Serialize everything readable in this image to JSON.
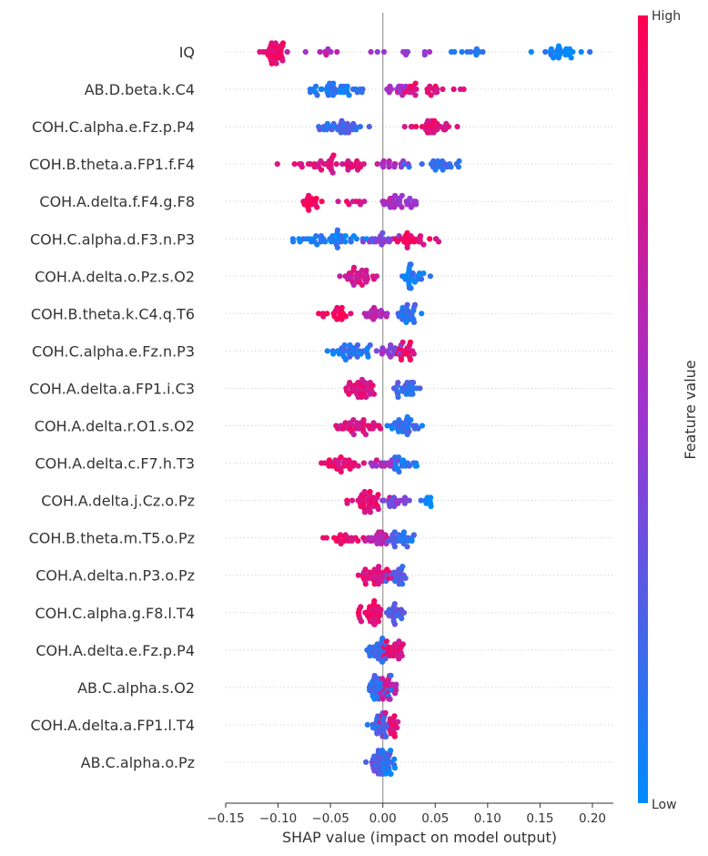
{
  "chart_data": {
    "type": "scatter",
    "subtype": "shap-beeswarm",
    "xlabel": "SHAP value (impact on model output)",
    "xlim": [
      -0.15,
      0.22
    ],
    "x_ticks": [
      -0.15,
      -0.1,
      -0.05,
      0.0,
      0.05,
      0.1,
      0.15,
      0.2
    ],
    "x_tick_labels": [
      "−0.15",
      "−0.10",
      "−0.05",
      "0.00",
      "0.05",
      "0.10",
      "0.15",
      "0.20"
    ],
    "colorbar": {
      "label": "Feature value",
      "high_label": "High",
      "low_label": "Low",
      "low_color": "#008bfb",
      "mid_color": "#a033cf",
      "high_color": "#ff0052"
    },
    "features": [
      {
        "name": "IQ",
        "clusters": [
          {
            "x": -0.105,
            "spread": 0.014,
            "color": 0.9,
            "n": 32
          },
          {
            "x": -0.055,
            "spread": 0.025,
            "color": 0.6,
            "n": 9
          },
          {
            "x": 0.01,
            "spread": 0.04,
            "color": 0.45,
            "n": 10
          },
          {
            "x": 0.08,
            "spread": 0.02,
            "color": 0.15,
            "n": 10
          },
          {
            "x": 0.17,
            "spread": 0.022,
            "color": 0.05,
            "n": 25
          }
        ]
      },
      {
        "name": "AB.D.beta.k.C4",
        "clusters": [
          {
            "x": -0.045,
            "spread": 0.03,
            "color": 0.08,
            "n": 36
          },
          {
            "x": 0.01,
            "spread": 0.012,
            "color": 0.55,
            "n": 12
          },
          {
            "x": 0.045,
            "spread": 0.025,
            "color": 0.85,
            "n": 26
          }
        ]
      },
      {
        "name": "COH.C.alpha.e.Fz.p.P4",
        "clusters": [
          {
            "x": -0.04,
            "spread": 0.02,
            "color": 0.2,
            "n": 32
          },
          {
            "x": 0.045,
            "spread": 0.025,
            "color": 0.85,
            "n": 30
          }
        ]
      },
      {
        "name": "COH.B.theta.a.FP1.f.F4",
        "clusters": [
          {
            "x": -0.045,
            "spread": 0.035,
            "color": 0.82,
            "n": 40
          },
          {
            "x": 0.01,
            "spread": 0.02,
            "color": 0.55,
            "n": 14
          },
          {
            "x": 0.05,
            "spread": 0.02,
            "color": 0.15,
            "n": 22
          }
        ]
      },
      {
        "name": "COH.A.delta.f.F4.g.F8",
        "clusters": [
          {
            "x": -0.065,
            "spread": 0.015,
            "color": 0.95,
            "n": 16
          },
          {
            "x": -0.03,
            "spread": 0.02,
            "color": 0.8,
            "n": 8
          },
          {
            "x": 0.015,
            "spread": 0.018,
            "color": 0.55,
            "n": 30
          }
        ]
      },
      {
        "name": "COH.C.alpha.d.F3.n.P3",
        "clusters": [
          {
            "x": -0.05,
            "spread": 0.035,
            "color": 0.08,
            "n": 40
          },
          {
            "x": 0.0,
            "spread": 0.015,
            "color": 0.4,
            "n": 16
          },
          {
            "x": 0.03,
            "spread": 0.018,
            "color": 0.88,
            "n": 24
          }
        ]
      },
      {
        "name": "COH.A.delta.o.Pz.s.O2",
        "clusters": [
          {
            "x": -0.025,
            "spread": 0.016,
            "color": 0.75,
            "n": 32
          },
          {
            "x": 0.025,
            "spread": 0.015,
            "color": 0.08,
            "n": 28
          }
        ]
      },
      {
        "name": "COH.B.theta.k.C4.q.T6",
        "clusters": [
          {
            "x": -0.045,
            "spread": 0.015,
            "color": 0.95,
            "n": 18
          },
          {
            "x": -0.01,
            "spread": 0.014,
            "color": 0.6,
            "n": 18
          },
          {
            "x": 0.022,
            "spread": 0.01,
            "color": 0.15,
            "n": 26
          }
        ]
      },
      {
        "name": "COH.C.alpha.e.Fz.n.P3",
        "clusters": [
          {
            "x": -0.03,
            "spread": 0.02,
            "color": 0.12,
            "n": 34
          },
          {
            "x": 0.005,
            "spread": 0.012,
            "color": 0.45,
            "n": 16
          },
          {
            "x": 0.024,
            "spread": 0.01,
            "color": 0.9,
            "n": 18
          }
        ]
      },
      {
        "name": "COH.A.delta.a.FP1.i.C3",
        "clusters": [
          {
            "x": -0.02,
            "spread": 0.015,
            "color": 0.8,
            "n": 36
          },
          {
            "x": 0.02,
            "spread": 0.012,
            "color": 0.2,
            "n": 26
          }
        ]
      },
      {
        "name": "COH.A.delta.r.O1.s.O2",
        "clusters": [
          {
            "x": -0.025,
            "spread": 0.018,
            "color": 0.8,
            "n": 36
          },
          {
            "x": 0.02,
            "spread": 0.016,
            "color": 0.15,
            "n": 30
          }
        ]
      },
      {
        "name": "COH.A.delta.c.F7.h.T3",
        "clusters": [
          {
            "x": -0.035,
            "spread": 0.018,
            "color": 0.85,
            "n": 30
          },
          {
            "x": 0.0,
            "spread": 0.012,
            "color": 0.55,
            "n": 14
          },
          {
            "x": 0.02,
            "spread": 0.01,
            "color": 0.1,
            "n": 18
          }
        ]
      },
      {
        "name": "COH.A.delta.j.Cz.o.Pz",
        "clusters": [
          {
            "x": -0.015,
            "spread": 0.014,
            "color": 0.85,
            "n": 36
          },
          {
            "x": 0.015,
            "spread": 0.012,
            "color": 0.4,
            "n": 16
          },
          {
            "x": 0.042,
            "spread": 0.006,
            "color": 0.05,
            "n": 8
          }
        ]
      },
      {
        "name": "COH.B.theta.m.T5.o.Pz",
        "clusters": [
          {
            "x": -0.035,
            "spread": 0.02,
            "color": 0.9,
            "n": 18
          },
          {
            "x": -0.005,
            "spread": 0.012,
            "color": 0.65,
            "n": 20
          },
          {
            "x": 0.018,
            "spread": 0.012,
            "color": 0.15,
            "n": 24
          }
        ]
      },
      {
        "name": "COH.A.delta.n.P3.o.Pz",
        "clusters": [
          {
            "x": -0.008,
            "spread": 0.014,
            "color": 0.85,
            "n": 34
          },
          {
            "x": 0.012,
            "spread": 0.01,
            "color": 0.25,
            "n": 20
          }
        ]
      },
      {
        "name": "COH.C.alpha.g.F8.l.T4",
        "clusters": [
          {
            "x": -0.01,
            "spread": 0.014,
            "color": 0.88,
            "n": 32
          },
          {
            "x": 0.012,
            "spread": 0.008,
            "color": 0.25,
            "n": 20
          }
        ]
      },
      {
        "name": "COH.A.delta.e.Fz.p.P4",
        "clusters": [
          {
            "x": -0.005,
            "spread": 0.01,
            "color": 0.2,
            "n": 28
          },
          {
            "x": 0.01,
            "spread": 0.01,
            "color": 0.85,
            "n": 24
          }
        ]
      },
      {
        "name": "AB.C.alpha.s.O2",
        "clusters": [
          {
            "x": -0.003,
            "spread": 0.01,
            "color": 0.15,
            "n": 30
          },
          {
            "x": 0.006,
            "spread": 0.008,
            "color": 0.7,
            "n": 22
          }
        ]
      },
      {
        "name": "COH.A.delta.a.FP1.l.T4",
        "clusters": [
          {
            "x": -0.004,
            "spread": 0.008,
            "color": 0.2,
            "n": 28
          },
          {
            "x": 0.008,
            "spread": 0.01,
            "color": 0.85,
            "n": 20
          }
        ]
      },
      {
        "name": "AB.C.alpha.o.Pz",
        "clusters": [
          {
            "x": -0.004,
            "spread": 0.008,
            "color": 0.3,
            "n": 26
          },
          {
            "x": 0.004,
            "spread": 0.006,
            "color": 0.1,
            "n": 22
          }
        ]
      }
    ]
  }
}
